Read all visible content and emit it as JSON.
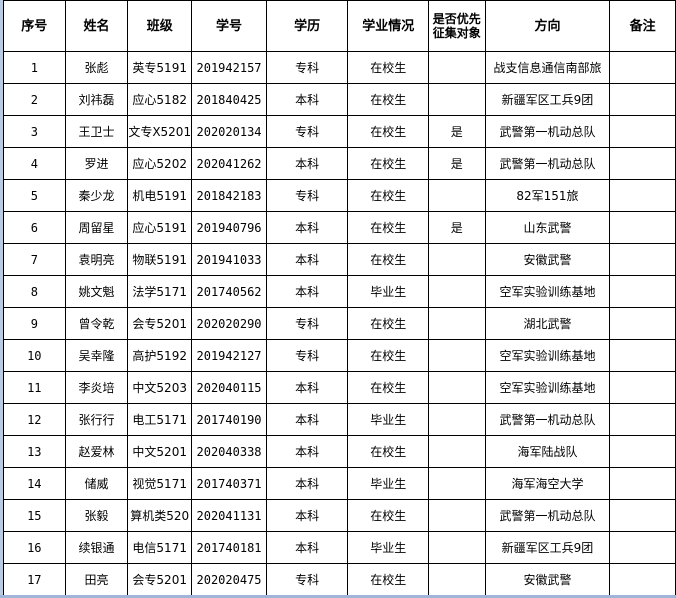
{
  "headers": [
    "序号",
    "姓名",
    "班级",
    "学号",
    "学历",
    "学业情况",
    "是否优先征集对象",
    "方向",
    "备注"
  ],
  "rows": [
    [
      "1",
      "张彪",
      "英专5191",
      "201942157",
      "专科",
      "在校生",
      "",
      "战支信息通信南部旅",
      ""
    ],
    [
      "2",
      "刘祎磊",
      "应心5182",
      "201840425",
      "本科",
      "在校生",
      "",
      "新疆军区工兵9团",
      ""
    ],
    [
      "3",
      "王卫士",
      "文专X5201",
      "202020134",
      "专科",
      "在校生",
      "是",
      "武警第一机动总队",
      ""
    ],
    [
      "4",
      "罗进",
      "应心5202",
      "202041262",
      "本科",
      "在校生",
      "是",
      "武警第一机动总队",
      ""
    ],
    [
      "5",
      "秦少龙",
      "机电5191",
      "201842183",
      "专科",
      "在校生",
      "",
      "82军151旅",
      ""
    ],
    [
      "6",
      "周留星",
      "应心5191",
      "201940796",
      "本科",
      "在校生",
      "是",
      "山东武警",
      ""
    ],
    [
      "7",
      "袁明亮",
      "物联5191",
      "201941033",
      "本科",
      "在校生",
      "",
      "安徽武警",
      ""
    ],
    [
      "8",
      "姚文魁",
      "法学5171",
      "201740562",
      "本科",
      "毕业生",
      "",
      "空军实验训练基地",
      ""
    ],
    [
      "9",
      "曾令乾",
      "会专5201",
      "202020290",
      "专科",
      "在校生",
      "",
      "湖北武警",
      ""
    ],
    [
      "10",
      "吴幸隆",
      "高护5192",
      "201942127",
      "专科",
      "在校生",
      "",
      "空军实验训练基地",
      ""
    ],
    [
      "11",
      "李炎培",
      "中文5203",
      "202040115",
      "本科",
      "在校生",
      "",
      "空军实验训练基地",
      ""
    ],
    [
      "12",
      "张行行",
      "电工5171",
      "201740190",
      "本科",
      "毕业生",
      "",
      "武警第一机动总队",
      ""
    ],
    [
      "13",
      "赵爱林",
      "中文5201",
      "202040338",
      "本科",
      "在校生",
      "",
      "海军陆战队",
      ""
    ],
    [
      "14",
      "储威",
      "视觉5171",
      "201740371",
      "本科",
      "毕业生",
      "",
      "海军海空大学",
      ""
    ],
    [
      "15",
      "张毅",
      "算机类520",
      "202041131",
      "本科",
      "在校生",
      "",
      "武警第一机动总队",
      ""
    ],
    [
      "16",
      "续银通",
      "电信5171",
      "201740181",
      "本科",
      "毕业生",
      "",
      "新疆军区工兵9团",
      ""
    ],
    [
      "17",
      "田亮",
      "会专5201",
      "202020475",
      "专科",
      "在校生",
      "",
      "安徽武警",
      ""
    ]
  ]
}
